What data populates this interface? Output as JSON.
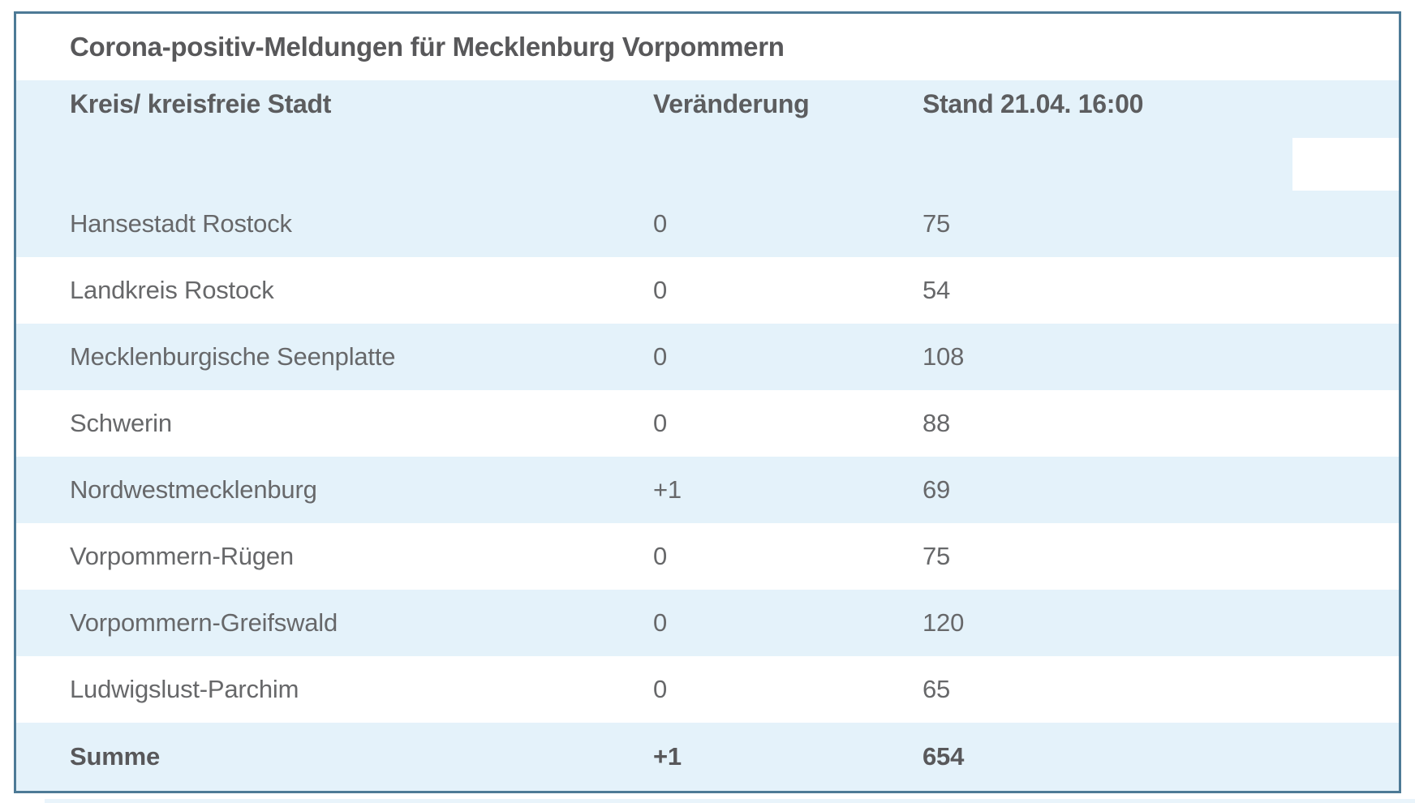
{
  "title": "Corona-positiv-Meldungen für Mecklenburg Vorpommern",
  "chart_data": {
    "type": "table",
    "title": "Corona-positiv-Meldungen für Mecklenburg Vorpommern",
    "columns": [
      "Kreis/ kreisfreie Stadt",
      "Veränderung",
      "Stand 21.04. 16:00"
    ],
    "rows": [
      [
        "Hansestadt Rostock",
        "0",
        75
      ],
      [
        "Landkreis Rostock",
        "0",
        54
      ],
      [
        "Mecklenburgische Seenplatte",
        "0",
        108
      ],
      [
        "Schwerin",
        "0",
        88
      ],
      [
        "Nordwestmecklenburg",
        "+1",
        69
      ],
      [
        "Vorpommern-Rügen",
        "0",
        75
      ],
      [
        "Vorpommern-Greifswald",
        "0",
        120
      ],
      [
        "Ludwigslust-Parchim",
        "0",
        65
      ]
    ],
    "total_row": [
      "Summe",
      "+1",
      654
    ],
    "layout": "zebra-striped rows, first data row shaded, totals row shaded and bold"
  },
  "table": {
    "columns": {
      "kreis": "Kreis/ kreisfreie Stadt",
      "veraenderung": "Veränderung",
      "stand": "Stand 21.04. 16:00"
    },
    "rows": [
      {
        "name": "Hansestadt Rostock",
        "change": "0",
        "count": "75"
      },
      {
        "name": "Landkreis Rostock",
        "change": "0",
        "count": "54"
      },
      {
        "name": "Mecklenburgische Seenplatte",
        "change": "0",
        "count": "108"
      },
      {
        "name": "Schwerin",
        "change": "0",
        "count": "88"
      },
      {
        "name": "Nordwestmecklenburg",
        "change": "+1",
        "count": "69"
      },
      {
        "name": "Vorpommern-Rügen",
        "change": "0",
        "count": "75"
      },
      {
        "name": "Vorpommern-Greifswald",
        "change": "0",
        "count": "120"
      },
      {
        "name": "Ludwigslust-Parchim",
        "change": "0",
        "count": "65"
      }
    ],
    "total": {
      "name": "Summe",
      "change": "+1",
      "count": "654"
    }
  },
  "colors": {
    "border": "#4d7a96",
    "row_shaded": "#e4f2fa",
    "row_plain": "#ffffff",
    "text_bold": "#58585a",
    "text_regular": "#67686a"
  }
}
